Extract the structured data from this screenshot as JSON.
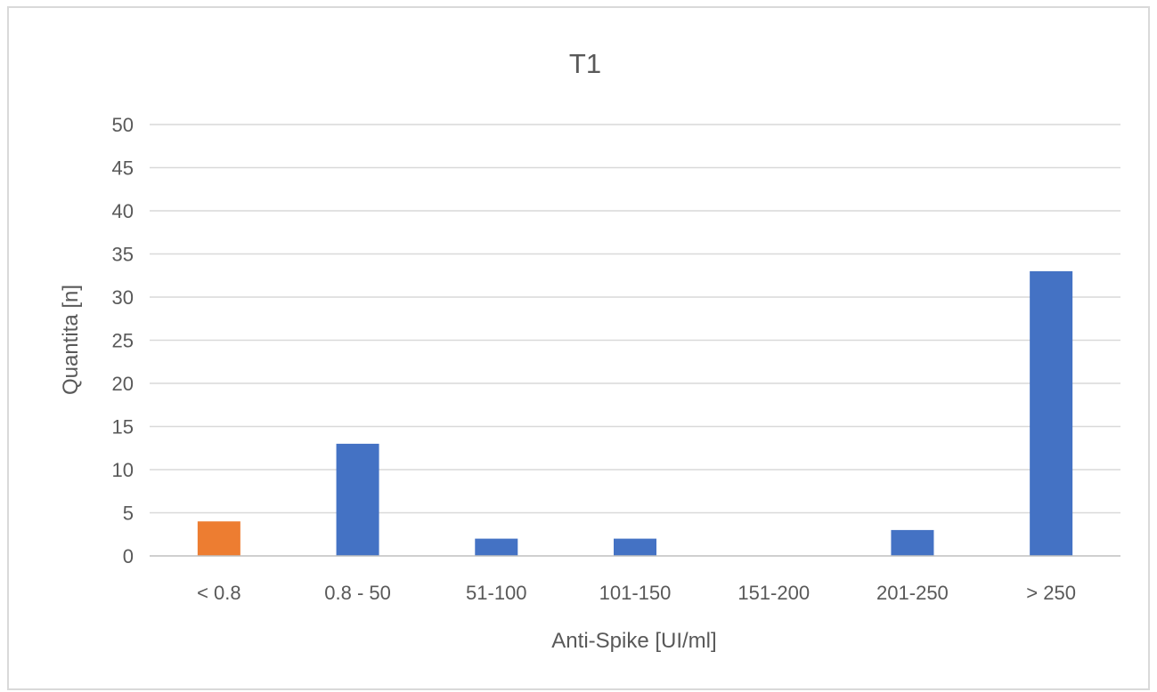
{
  "chart_data": {
    "type": "bar",
    "title": "T1",
    "xlabel": "Anti-Spike [UI/ml]",
    "ylabel": "Quantita [n]",
    "categories": [
      "< 0.8",
      "0.8 - 50",
      "51-100",
      "101-150",
      "151-200",
      "201-250",
      "> 250"
    ],
    "values": [
      4,
      13,
      2,
      2,
      0,
      3,
      33
    ],
    "bar_colors": [
      "#ED7D31",
      "#4472C4",
      "#4472C4",
      "#4472C4",
      "#4472C4",
      "#4472C4",
      "#4472C4"
    ],
    "ylim": [
      0,
      50
    ],
    "yticks": [
      "0",
      "5",
      "10",
      "15",
      "20",
      "25",
      "30",
      "35",
      "40",
      "45",
      "50"
    ],
    "grid": true,
    "legend": "none",
    "gridline_color": "#d9d9d9",
    "axis_color": "#bfbfbf",
    "text_color": "#595959"
  }
}
